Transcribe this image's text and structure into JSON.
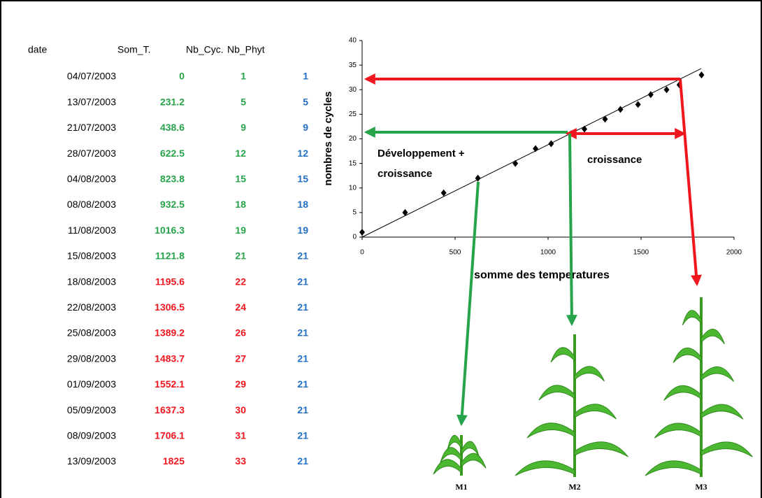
{
  "table": {
    "header": [
      "date",
      "Som_T.",
      "Nb_Cyc.",
      "Nb_Phyt"
    ],
    "rows": [
      [
        "04/07/2003",
        0,
        1,
        1
      ],
      [
        "13/07/2003",
        231.2,
        5,
        5
      ],
      [
        "21/07/2003",
        438.6,
        9,
        9
      ],
      [
        "28/07/2003",
        622.5,
        12,
        12
      ],
      [
        "04/08/2003",
        823.8,
        15,
        15
      ],
      [
        "08/08/2003",
        932.5,
        18,
        18
      ],
      [
        "11/08/2003",
        1016.3,
        19,
        19
      ],
      [
        "15/08/2003",
        1121.8,
        21,
        21
      ],
      [
        "18/08/2003",
        1195.6,
        22,
        21
      ],
      [
        "22/08/2003",
        1306.5,
        24,
        21
      ],
      [
        "25/08/2003",
        1389.2,
        26,
        21
      ],
      [
        "29/08/2003",
        1483.7,
        27,
        21
      ],
      [
        "01/09/2003",
        1552.1,
        29,
        21
      ],
      [
        "05/09/2003",
        1637.3,
        30,
        21
      ],
      [
        "08/09/2003",
        1706.1,
        31,
        21
      ],
      [
        "13/09/2003",
        1825,
        33,
        21
      ]
    ],
    "value_colors": [
      "#27a34a",
      "#27a34a",
      "#27a34a",
      "#27a34a",
      "#27a34a",
      "#27a34a",
      "#27a34a",
      "#27a34a",
      "#f0161e",
      "#f0161e",
      "#f0161e",
      "#f0161e",
      "#f0161e",
      "#f0161e",
      "#f0161e",
      "#f0161e"
    ],
    "phyt_color": "#2170c4"
  },
  "chart_data": {
    "type": "scatter",
    "xlabel": "somme des temperatures",
    "ylabel": "nombres de cycles",
    "x": [
      0,
      231.2,
      438.6,
      622.5,
      823.8,
      932.5,
      1016.3,
      1121.8,
      1195.6,
      1306.5,
      1389.2,
      1483.7,
      1552.1,
      1637.3,
      1706.1,
      1825
    ],
    "y": [
      1,
      5,
      9,
      12,
      15,
      18,
      19,
      21,
      22,
      24,
      26,
      27,
      29,
      30,
      31,
      33
    ],
    "color": "#000000",
    "trend": {
      "x": [
        0,
        1823
      ],
      "y": [
        0,
        34.3
      ]
    },
    "xlim": [
      0,
      2000
    ],
    "ylim": [
      0,
      40
    ],
    "xticks": [
      0,
      500,
      1000,
      1500,
      2000
    ],
    "yticks": [
      0,
      5,
      10,
      15,
      20,
      25,
      30,
      35,
      40
    ],
    "annotations": [
      [
        "Développement +",
        "croissance"
      ],
      [
        "croissance"
      ]
    ]
  },
  "plants": [
    "M1",
    "M2",
    "M3"
  ]
}
